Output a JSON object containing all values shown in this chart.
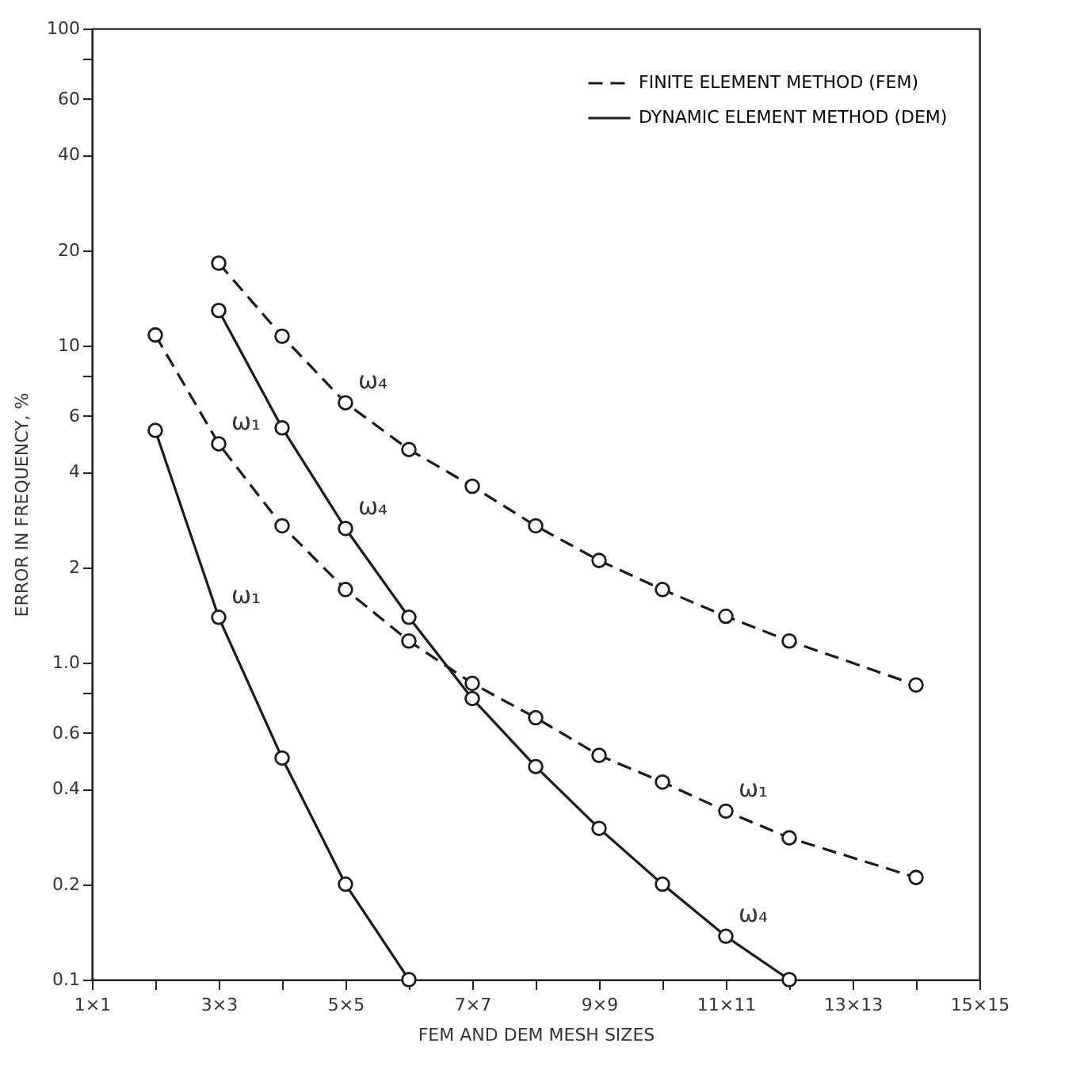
{
  "chart_data": {
    "type": "line",
    "xlabel": "FEM AND DEM MESH SIZES",
    "ylabel": "ERROR IN FREQUENCY, %",
    "categories": [
      "1×1",
      null,
      "3×3",
      null,
      "5×5",
      null,
      "7×7",
      null,
      "9×9",
      null,
      "11×11",
      null,
      "13×13",
      null,
      "15×15"
    ],
    "ylim": [
      0.1,
      100
    ],
    "yticks": [
      0.1,
      0.2,
      0.4,
      0.6,
      {
        "value": 0.8,
        "label": null
      },
      {
        "value": 1,
        "label": "1.0"
      },
      2,
      4,
      6,
      {
        "value": 8,
        "label": null
      },
      10,
      20,
      40,
      60,
      {
        "value": 80,
        "label": null
      },
      100
    ],
    "log": "y",
    "legend": "top right",
    "marker": "circle",
    "series": [
      {
        "name": "FINITE ELEMENT METHOD (FEM)",
        "color": "#1a1a1a",
        "line_style": "dashed",
        "values": [
          null,
          null,
          18.2,
          10.7,
          6.6,
          4.7,
          3.6,
          2.7,
          2.1,
          1.7,
          1.4,
          1.17,
          null,
          0.85,
          null
        ]
      },
      {
        "color": "#1a1a1a",
        "line_style": "dashed",
        "values": [
          null,
          10.8,
          4.9,
          2.7,
          1.7,
          1.17,
          0.86,
          0.67,
          0.51,
          0.42,
          0.34,
          0.28,
          null,
          0.21,
          null
        ]
      },
      {
        "name": "DYNAMIC ELEMENT METHOD (DEM)",
        "color": "#1a1a1a",
        "line_style": "solid",
        "values": [
          null,
          null,
          12.9,
          5.5,
          2.65,
          1.39,
          0.77,
          0.47,
          0.3,
          0.2,
          0.137,
          0.1,
          null,
          null,
          null
        ]
      },
      {
        "color": "#1a1a1a",
        "line_style": "solid",
        "values": [
          null,
          5.4,
          1.39,
          0.5,
          0.2,
          0.1,
          null,
          null,
          null,
          null,
          null,
          null,
          null,
          null,
          null
        ]
      }
    ],
    "annotations": [
      {
        "text": "ω₄",
        "x": "5×5",
        "y": 6.6
      },
      {
        "text": "ω₄",
        "x": "5×5",
        "y": 2.65
      },
      {
        "text": "ω₁",
        "x": "3×3",
        "y": 4.9
      },
      {
        "text": "ω₁",
        "x": "3×3",
        "y": 1.39
      },
      {
        "text": "ω₁",
        "x": "11×11",
        "y": 0.34
      },
      {
        "text": "ω₄",
        "x": "11×11",
        "y": 0.137
      }
    ]
  }
}
